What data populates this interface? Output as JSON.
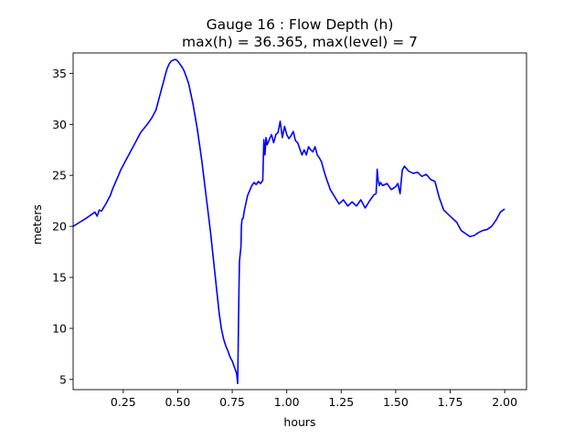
{
  "chart_data": {
    "type": "line",
    "title": "Gauge 16 : Flow Depth (h)",
    "subtitle": "max(h) =  36.365,    max(level) = 7",
    "xlabel": "hours",
    "ylabel": "meters",
    "xlim": [
      0.02,
      2.1
    ],
    "ylim": [
      4.0,
      37.0
    ],
    "xticks": [
      0.25,
      0.5,
      0.75,
      1.0,
      1.25,
      1.5,
      1.75,
      2.0
    ],
    "xtick_labels": [
      "0.25",
      "0.50",
      "0.75",
      "1.00",
      "1.25",
      "1.50",
      "1.75",
      "2.00"
    ],
    "yticks": [
      5,
      10,
      15,
      20,
      25,
      30,
      35
    ],
    "ytick_labels": [
      "5",
      "10",
      "15",
      "20",
      "25",
      "30",
      "35"
    ],
    "grid": false,
    "line_color": "#0000ff",
    "series": [
      {
        "name": "",
        "x": [
          0.02,
          0.05,
          0.08,
          0.1,
          0.12,
          0.13,
          0.14,
          0.15,
          0.17,
          0.19,
          0.2,
          0.22,
          0.24,
          0.26,
          0.28,
          0.3,
          0.33,
          0.36,
          0.38,
          0.4,
          0.42,
          0.44,
          0.45,
          0.46,
          0.47,
          0.48,
          0.49,
          0.5,
          0.51,
          0.52,
          0.53,
          0.55,
          0.57,
          0.59,
          0.61,
          0.63,
          0.65,
          0.67,
          0.69,
          0.7,
          0.71,
          0.72,
          0.73,
          0.74,
          0.75,
          0.76,
          0.77,
          0.775,
          0.78,
          0.781,
          0.783,
          0.785,
          0.79,
          0.792,
          0.795,
          0.8,
          0.805,
          0.81,
          0.82,
          0.83,
          0.84,
          0.85,
          0.86,
          0.87,
          0.88,
          0.89,
          0.895,
          0.9,
          0.905,
          0.91,
          0.92,
          0.93,
          0.94,
          0.95,
          0.96,
          0.97,
          0.975,
          0.98,
          0.99,
          1.0,
          1.01,
          1.02,
          1.03,
          1.04,
          1.05,
          1.06,
          1.07,
          1.08,
          1.09,
          1.1,
          1.11,
          1.12,
          1.13,
          1.14,
          1.15,
          1.16,
          1.17,
          1.18,
          1.19,
          1.2,
          1.22,
          1.24,
          1.26,
          1.28,
          1.3,
          1.32,
          1.34,
          1.36,
          1.38,
          1.4,
          1.41,
          1.415,
          1.42,
          1.425,
          1.43,
          1.44,
          1.46,
          1.48,
          1.5,
          1.51,
          1.52,
          1.53,
          1.54,
          1.56,
          1.58,
          1.6,
          1.62,
          1.64,
          1.66,
          1.68,
          1.7,
          1.72,
          1.74,
          1.76,
          1.78,
          1.8,
          1.82,
          1.84,
          1.86,
          1.88,
          1.9,
          1.92,
          1.94,
          1.96,
          1.98,
          2.0
        ],
        "y": [
          20.0,
          20.4,
          20.8,
          21.1,
          21.4,
          21.0,
          21.6,
          21.5,
          22.2,
          23.0,
          23.6,
          24.6,
          25.6,
          26.4,
          27.2,
          28.0,
          29.2,
          30.0,
          30.6,
          31.4,
          33.0,
          34.6,
          35.4,
          35.9,
          36.2,
          36.3,
          36.36,
          36.2,
          35.9,
          35.6,
          35.2,
          34.0,
          32.0,
          29.5,
          26.5,
          23.0,
          19.5,
          15.5,
          11.5,
          10.0,
          9.0,
          8.3,
          7.8,
          7.2,
          6.8,
          6.2,
          5.6,
          4.6,
          12.5,
          14.0,
          16.5,
          17.0,
          18.0,
          20.0,
          20.7,
          20.8,
          21.5,
          22.0,
          23.0,
          23.5,
          24.0,
          24.3,
          24.1,
          24.4,
          24.2,
          24.5,
          28.5,
          27.0,
          28.7,
          28.0,
          28.5,
          29.0,
          28.2,
          29.0,
          29.2,
          30.3,
          29.5,
          28.7,
          29.8,
          29.0,
          28.6,
          28.9,
          29.3,
          28.4,
          28.2,
          27.6,
          27.0,
          27.5,
          27.0,
          27.8,
          27.5,
          27.3,
          27.8,
          27.0,
          26.7,
          26.3,
          25.5,
          24.8,
          24.2,
          23.6,
          22.9,
          22.2,
          22.6,
          22.0,
          22.4,
          22.0,
          22.6,
          21.8,
          22.5,
          23.1,
          23.2,
          25.6,
          24.4,
          24.0,
          24.3,
          24.0,
          24.2,
          23.6,
          23.9,
          24.2,
          23.2,
          25.5,
          25.9,
          25.4,
          25.2,
          25.3,
          24.9,
          25.1,
          24.6,
          24.4,
          22.8,
          21.6,
          21.2,
          20.8,
          20.4,
          19.6,
          19.3,
          19.0,
          19.1,
          19.4,
          19.6,
          19.7,
          20.0,
          20.6,
          21.4,
          21.7
        ]
      }
    ]
  }
}
